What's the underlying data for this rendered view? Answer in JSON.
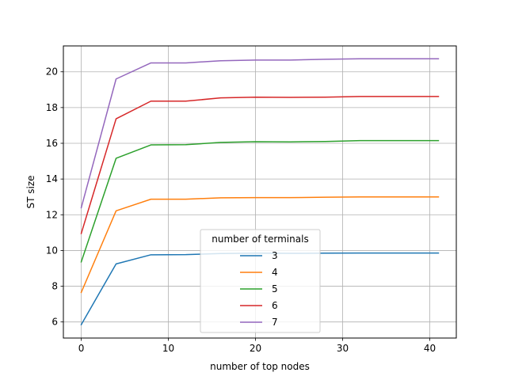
{
  "chart_data": {
    "type": "line",
    "title": "",
    "xlabel": "number of top nodes",
    "ylabel": "ST size",
    "xlim": [
      -2.05,
      43.05
    ],
    "ylim": [
      5.1,
      21.45
    ],
    "xticks": [
      0,
      10,
      20,
      30,
      40
    ],
    "yticks": [
      6,
      8,
      10,
      12,
      14,
      16,
      18,
      20
    ],
    "grid": true,
    "legend": {
      "title": "number of terminals",
      "placement": "lower-center"
    },
    "x": [
      0,
      4,
      8,
      12,
      16,
      20,
      24,
      28,
      32,
      36,
      41
    ],
    "series": [
      {
        "name": "3",
        "color": "#1f77b4",
        "values": [
          5.85,
          9.25,
          9.76,
          9.77,
          9.83,
          9.85,
          9.84,
          9.85,
          9.86,
          9.86,
          9.86
        ]
      },
      {
        "name": "4",
        "color": "#ff7f0e",
        "values": [
          7.65,
          12.22,
          12.87,
          12.87,
          12.95,
          12.96,
          12.96,
          12.98,
          13.0,
          13.0,
          13.0
        ]
      },
      {
        "name": "5",
        "color": "#2ca02c",
        "values": [
          9.36,
          15.16,
          15.91,
          15.92,
          16.05,
          16.09,
          16.08,
          16.1,
          16.15,
          16.15,
          16.15
        ]
      },
      {
        "name": "6",
        "color": "#d62728",
        "values": [
          10.95,
          17.37,
          18.36,
          18.36,
          18.54,
          18.58,
          18.57,
          18.58,
          18.62,
          18.62,
          18.62
        ]
      },
      {
        "name": "7",
        "color": "#9467bd",
        "values": [
          12.39,
          19.6,
          20.5,
          20.5,
          20.62,
          20.66,
          20.66,
          20.7,
          20.73,
          20.73,
          20.73
        ]
      }
    ]
  }
}
